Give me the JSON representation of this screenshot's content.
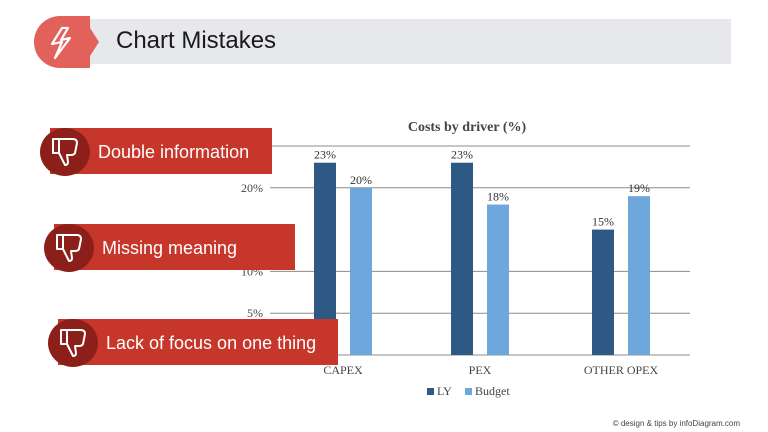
{
  "slide": {
    "title": "Chart Mistakes",
    "footer": "© design & tips by infoDiagram.com",
    "accent_color": "#c7362a",
    "badge_color": "#e2615a",
    "badge_icon": "lightning-icon"
  },
  "callouts": [
    {
      "label": "Double information",
      "icon": "thumbs-down-icon"
    },
    {
      "label": "Missing meaning",
      "icon": "thumbs-down-icon"
    },
    {
      "label": "Lack of focus on one thing",
      "icon": "thumbs-down-icon"
    }
  ],
  "chart_data": {
    "type": "bar",
    "title": "Costs by driver (%)",
    "categories": [
      "CAPEX",
      "PEX",
      "OTHER OPEX"
    ],
    "series": [
      {
        "name": "LY",
        "values": [
          23,
          23,
          15
        ],
        "labels": [
          "23%",
          "23%",
          "15%"
        ],
        "color": "#2e5984"
      },
      {
        "name": "Budget",
        "values": [
          20,
          18,
          19
        ],
        "labels": [
          "20%",
          "18%",
          "19%"
        ],
        "color": "#6da7dc"
      }
    ],
    "ylim": [
      0,
      25
    ],
    "yticks": [
      5,
      10,
      20
    ],
    "ytick_labels": [
      "5%",
      "10%",
      "20%"
    ],
    "grid": true,
    "legend_position": "bottom"
  }
}
